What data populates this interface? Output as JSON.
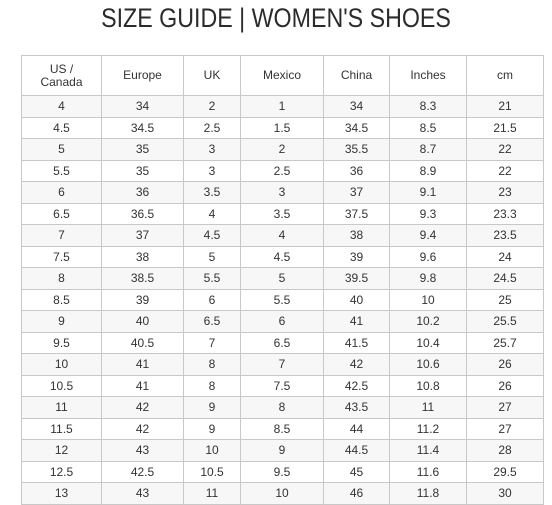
{
  "title": "SIZE GUIDE | WOMEN'S SHOES",
  "table": {
    "headers": [
      "US / Canada",
      "Europe",
      "UK",
      "Mexico",
      "China",
      "Inches",
      "cm"
    ],
    "rows": [
      [
        "4",
        "34",
        "2",
        "1",
        "34",
        "8.3",
        "21"
      ],
      [
        "4.5",
        "34.5",
        "2.5",
        "1.5",
        "34.5",
        "8.5",
        "21.5"
      ],
      [
        "5",
        "35",
        "3",
        "2",
        "35.5",
        "8.7",
        "22"
      ],
      [
        "5.5",
        "35",
        "3",
        "2.5",
        "36",
        "8.9",
        "22"
      ],
      [
        "6",
        "36",
        "3.5",
        "3",
        "37",
        "9.1",
        "23"
      ],
      [
        "6.5",
        "36.5",
        "4",
        "3.5",
        "37.5",
        "9.3",
        "23.3"
      ],
      [
        "7",
        "37",
        "4.5",
        "4",
        "38",
        "9.4",
        "23.5"
      ],
      [
        "7.5",
        "38",
        "5",
        "4.5",
        "39",
        "9.6",
        "24"
      ],
      [
        "8",
        "38.5",
        "5.5",
        "5",
        "39.5",
        "9.8",
        "24.5"
      ],
      [
        "8.5",
        "39",
        "6",
        "5.5",
        "40",
        "10",
        "25"
      ],
      [
        "9",
        "40",
        "6.5",
        "6",
        "41",
        "10.2",
        "25.5"
      ],
      [
        "9.5",
        "40.5",
        "7",
        "6.5",
        "41.5",
        "10.4",
        "25.7"
      ],
      [
        "10",
        "41",
        "8",
        "7",
        "42",
        "10.6",
        "26"
      ],
      [
        "10.5",
        "41",
        "8",
        "7.5",
        "42.5",
        "10.8",
        "26"
      ],
      [
        "11",
        "42",
        "9",
        "8",
        "43.5",
        "11",
        "27"
      ],
      [
        "11.5",
        "42",
        "9",
        "8.5",
        "44",
        "11.2",
        "27"
      ],
      [
        "12",
        "43",
        "10",
        "9",
        "44.5",
        "11.4",
        "28"
      ],
      [
        "12.5",
        "42.5",
        "10.5",
        "9.5",
        "45",
        "11.6",
        "29.5"
      ],
      [
        "13",
        "43",
        "11",
        "10",
        "46",
        "11.8",
        "30"
      ]
    ]
  }
}
